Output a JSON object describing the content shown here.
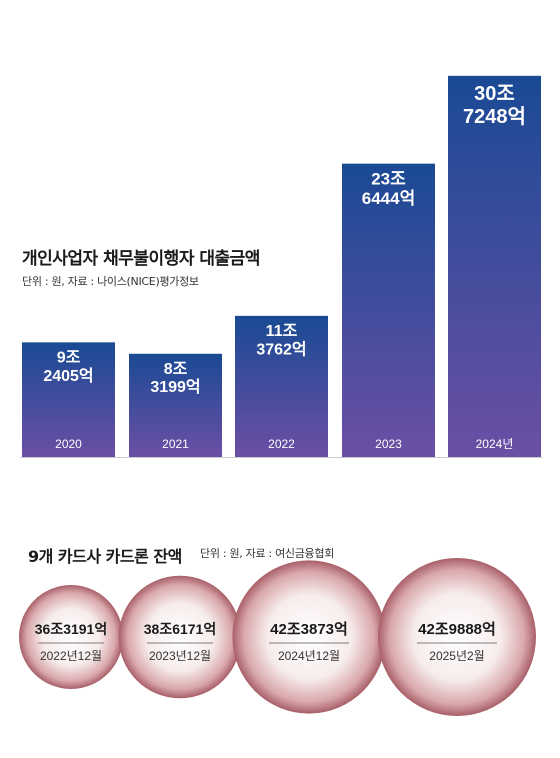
{
  "chart_data": [
    {
      "type": "bar",
      "title": "개인사업자 채무불이행자 대출금액",
      "unit_note": "단위 : 원, 자료 : 나이스(NICE)평가정보",
      "categories": [
        "2020",
        "2021",
        "2022",
        "2023",
        "2024년"
      ],
      "values": [
        92405,
        83199,
        113762,
        236444,
        307248
      ],
      "value_labels": [
        [
          "9조",
          "2405억"
        ],
        [
          "8조",
          "3199억"
        ],
        [
          "11조",
          "3762억"
        ],
        [
          "23조",
          "6444억"
        ],
        [
          "30조",
          "7248억"
        ]
      ],
      "value_unit": "억원",
      "ylim": [
        0,
        320000
      ]
    },
    {
      "type": "bubble",
      "title": "9개 카드사 카드론 잔액",
      "unit_note": "단위 : 원, 자료 : 여신금융협회",
      "categories": [
        "2022년12월",
        "2023년12월",
        "2024년12월",
        "2025년2월"
      ],
      "values": [
        363191,
        386171,
        423873,
        429888
      ],
      "value_labels": [
        "36조3191억",
        "38조6171억",
        "42조3873억",
        "42조9888억"
      ],
      "value_unit": "억원"
    }
  ],
  "colors": {
    "bar_top": "#1a4a94",
    "bar_bottom": "#6b4fa5",
    "bubble_outer": "#a85f68",
    "bubble_inner": "#ffffff",
    "baseline": "#cccccc"
  }
}
